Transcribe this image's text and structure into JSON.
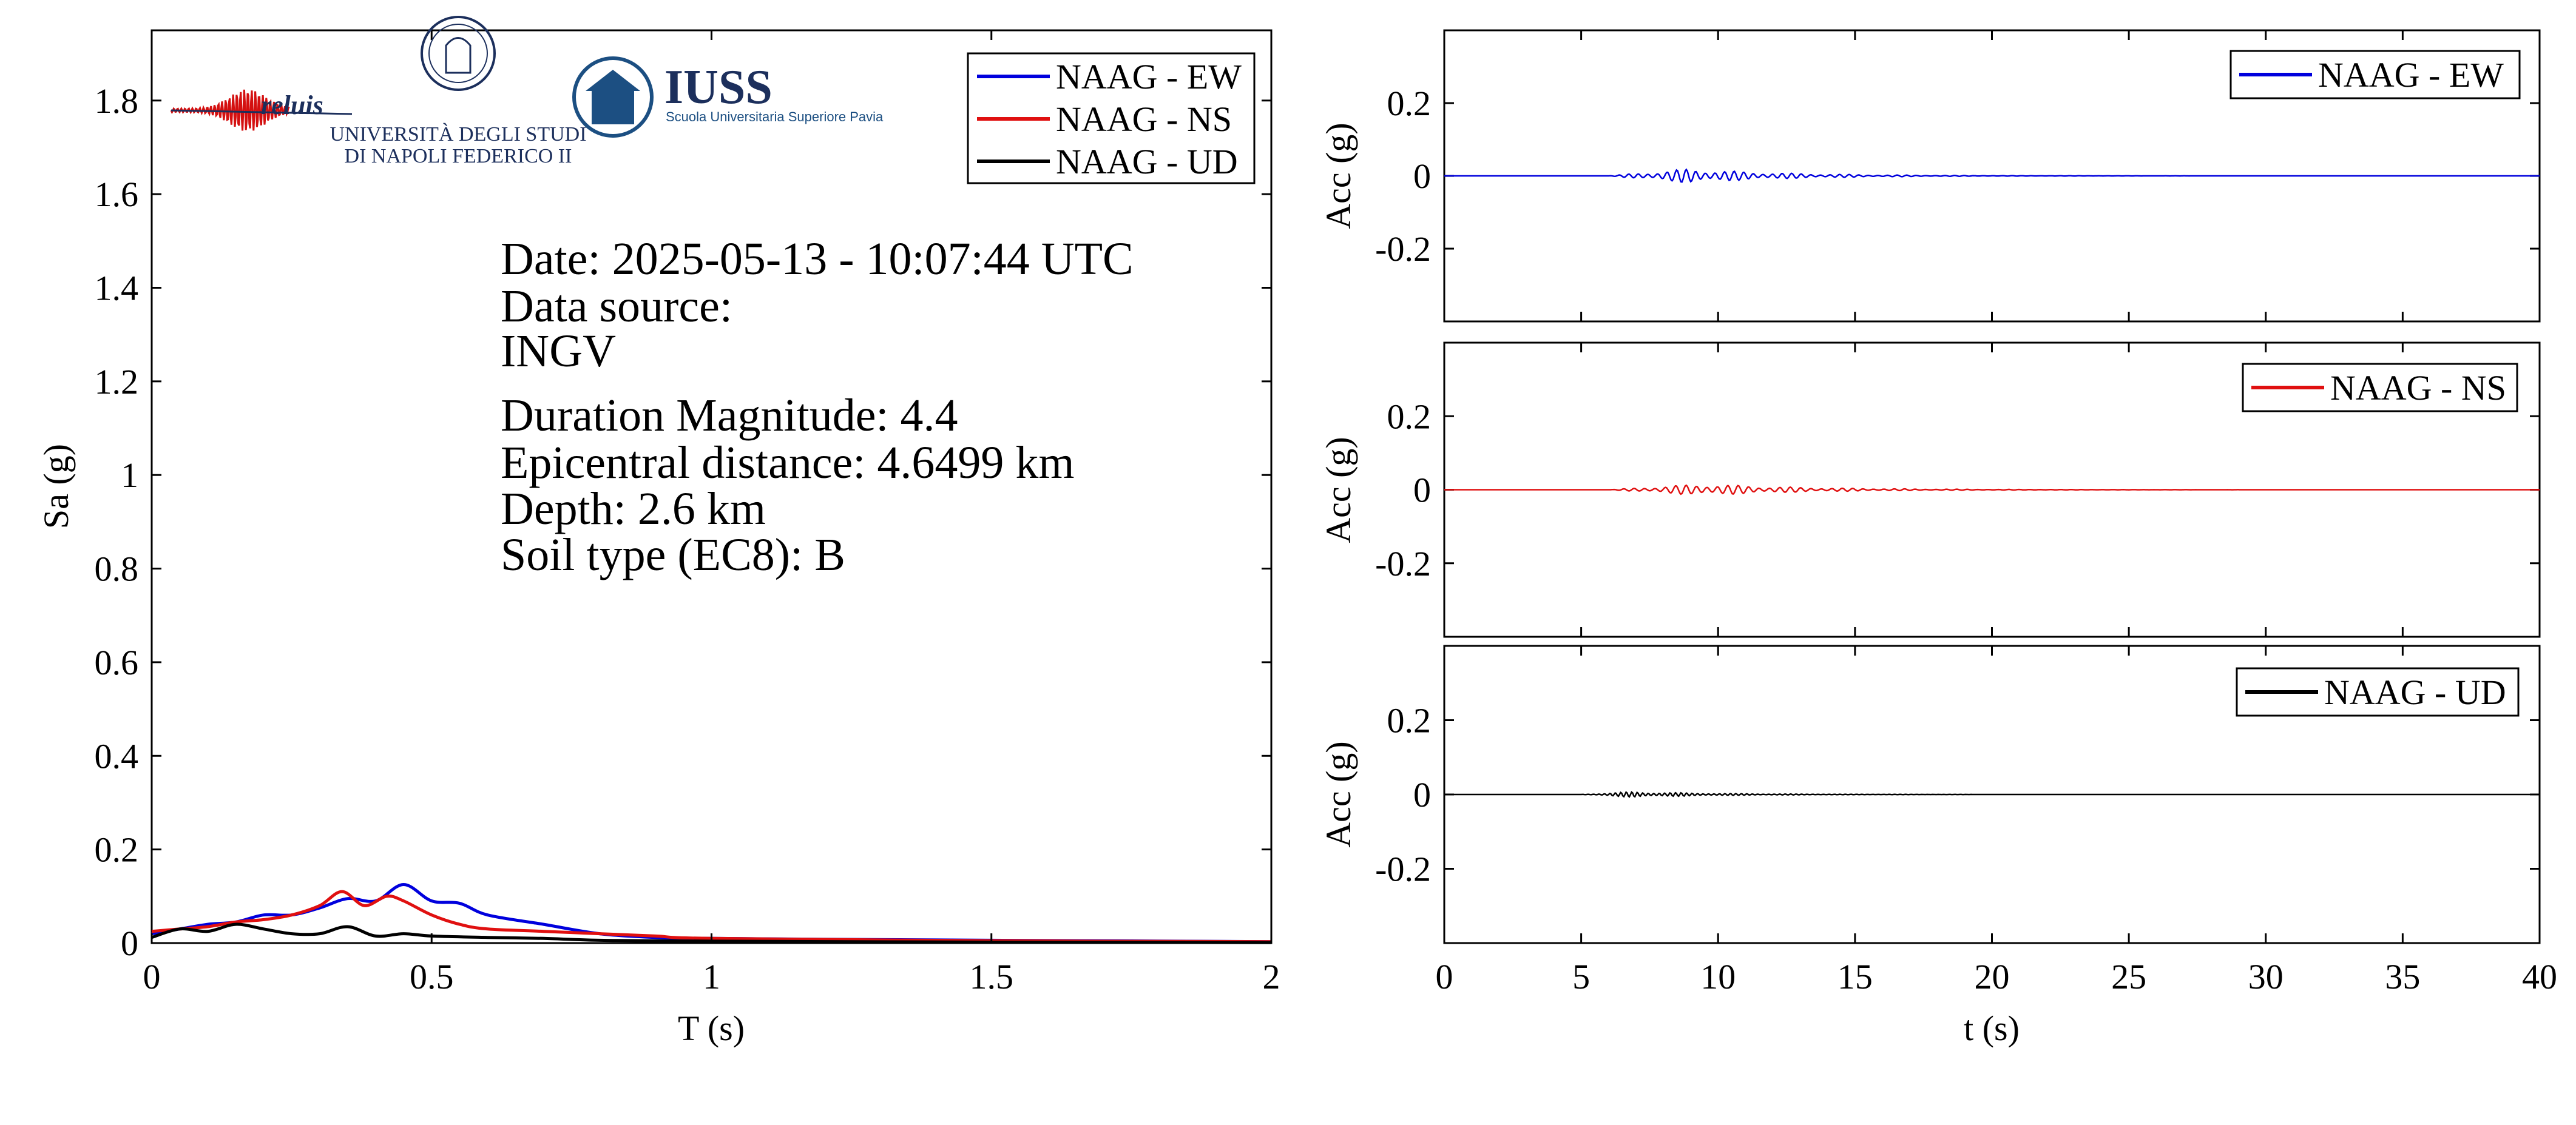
{
  "logos": {
    "reluis": "reluis",
    "unina_line1": "UNIVERSITÀ DEGLI STUDI",
    "unina_line2": "DI NAPOLI FEDERICO II",
    "iuss_name": "IUSS",
    "iuss_sub": "Scuola Universitaria Superiore Pavia"
  },
  "info": {
    "date": "Date: 2025-05-13 - 10:07:44 UTC",
    "source_label": "Data source:",
    "source": "INGV",
    "magnitude": "Duration Magnitude: 4.4",
    "distance": "Epicentral distance: 4.6499 km",
    "depth": "Depth: 2.6 km",
    "soil": "Soil type (EC8): B"
  },
  "colors": {
    "ew": "#0000dd",
    "ns": "#e01010",
    "ud": "#000000"
  },
  "chart_data": [
    {
      "type": "line",
      "xlabel": "T (s)",
      "ylabel": "Sa (g)",
      "xlim": [
        0,
        2
      ],
      "ylim": [
        0,
        1.95
      ],
      "xticks": [
        0,
        0.5,
        1,
        1.5,
        2
      ],
      "xtick_labels": [
        "0",
        "0.5",
        "1",
        "1.5",
        "2"
      ],
      "yticks": [
        0,
        0.2,
        0.4,
        0.6,
        0.8,
        1,
        1.2,
        1.4,
        1.6,
        1.8
      ],
      "ytick_labels": [
        "0",
        "0.2",
        "0.4",
        "0.6",
        "0.8",
        "1",
        "1.2",
        "1.4",
        "1.6",
        "1.8"
      ],
      "legend": "top-right",
      "series": [
        {
          "name": "NAAG - EW",
          "color": "#0000dd",
          "x": [
            0,
            0.05,
            0.1,
            0.15,
            0.2,
            0.25,
            0.3,
            0.35,
            0.4,
            0.45,
            0.5,
            0.55,
            0.6,
            0.7,
            0.8,
            0.9,
            1.0,
            1.2,
            1.5,
            2.0
          ],
          "y": [
            0.02,
            0.03,
            0.04,
            0.045,
            0.06,
            0.06,
            0.075,
            0.095,
            0.09,
            0.125,
            0.09,
            0.085,
            0.06,
            0.04,
            0.02,
            0.012,
            0.01,
            0.008,
            0.006,
            0.003
          ]
        },
        {
          "name": "NAAG - NS",
          "color": "#e01010",
          "x": [
            0,
            0.05,
            0.1,
            0.15,
            0.2,
            0.25,
            0.3,
            0.34,
            0.38,
            0.42,
            0.45,
            0.5,
            0.55,
            0.6,
            0.7,
            0.8,
            0.9,
            1.0,
            1.5,
            2.0
          ],
          "y": [
            0.025,
            0.03,
            0.035,
            0.045,
            0.05,
            0.06,
            0.08,
            0.11,
            0.08,
            0.1,
            0.09,
            0.06,
            0.04,
            0.03,
            0.025,
            0.02,
            0.015,
            0.01,
            0.005,
            0.003
          ]
        },
        {
          "name": "NAAG - UD",
          "color": "#000000",
          "x": [
            0,
            0.05,
            0.1,
            0.15,
            0.2,
            0.25,
            0.3,
            0.35,
            0.4,
            0.45,
            0.5,
            0.6,
            0.7,
            0.8,
            1.0,
            1.5,
            2.0
          ],
          "y": [
            0.012,
            0.03,
            0.025,
            0.04,
            0.03,
            0.02,
            0.02,
            0.035,
            0.015,
            0.02,
            0.015,
            0.012,
            0.01,
            0.006,
            0.004,
            0.002,
            0.001
          ]
        }
      ]
    },
    {
      "type": "line",
      "xlabel": "",
      "ylabel": "Acc (g)",
      "xlim": [
        0,
        40
      ],
      "ylim": [
        -0.4,
        0.4
      ],
      "yticks": [
        -0.2,
        0,
        0.2
      ],
      "ytick_labels": [
        "-0.2",
        "0",
        "0.2"
      ],
      "legend": "top-right",
      "series": [
        {
          "name": "NAAG - EW",
          "color": "#0000dd",
          "onset": 6.0,
          "peak_time": 9.0,
          "peak_acc": 0.02,
          "decay": 3.5,
          "period": 0.35,
          "end": 40
        }
      ]
    },
    {
      "type": "line",
      "xlabel": "",
      "ylabel": "Acc (g)",
      "xlim": [
        0,
        40
      ],
      "ylim": [
        -0.4,
        0.4
      ],
      "yticks": [
        -0.2,
        0,
        0.2
      ],
      "ytick_labels": [
        "-0.2",
        "0",
        "0.2"
      ],
      "legend": "top-right",
      "series": [
        {
          "name": "NAAG - NS",
          "color": "#e01010",
          "onset": 6.0,
          "peak_time": 9.5,
          "peak_acc": 0.016,
          "decay": 3.8,
          "period": 0.38,
          "end": 40
        }
      ]
    },
    {
      "type": "line",
      "xlabel": "t (s)",
      "ylabel": "Acc (g)",
      "xlim": [
        0,
        40
      ],
      "ylim": [
        -0.4,
        0.4
      ],
      "xticks": [
        0,
        5,
        10,
        15,
        20,
        25,
        30,
        35,
        40
      ],
      "xtick_labels": [
        "0",
        "5",
        "10",
        "15",
        "20",
        "25",
        "30",
        "35",
        "40"
      ],
      "yticks": [
        -0.2,
        0,
        0.2
      ],
      "ytick_labels": [
        "-0.2",
        "0",
        "0.2"
      ],
      "legend": "top-right",
      "series": [
        {
          "name": "NAAG - UD",
          "color": "#000000",
          "onset": 5.0,
          "peak_time": 7.0,
          "peak_acc": 0.008,
          "decay": 3.0,
          "period": 0.2,
          "end": 40
        }
      ]
    }
  ]
}
